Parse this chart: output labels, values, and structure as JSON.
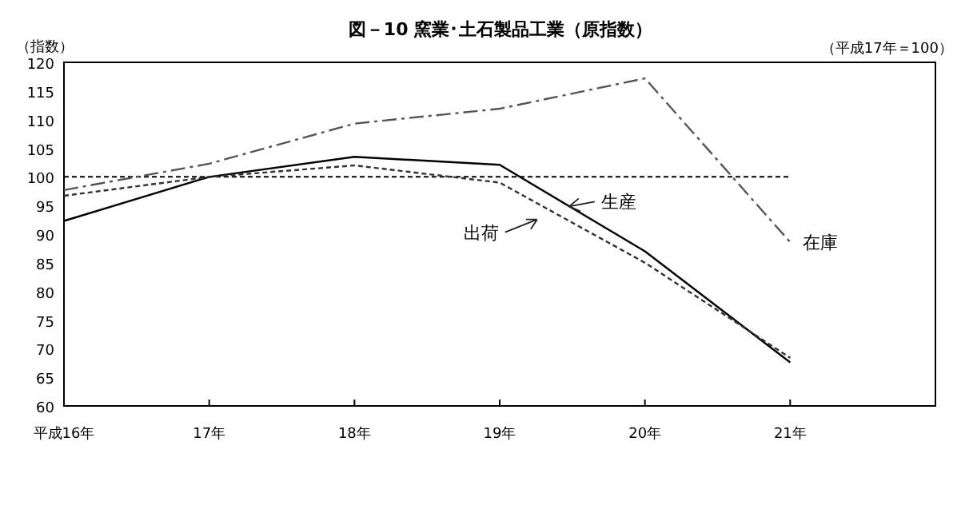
{
  "chart_data": {
    "type": "line",
    "title": "図－10 窯業･土石製品工業（原指数）",
    "ylabel": "（指数）",
    "annotations": [
      "（平成17年＝100）"
    ],
    "categories": [
      "平成16年",
      "17年",
      "18年",
      "19年",
      "20年",
      "21年",
      null
    ],
    "ylim": [
      60,
      120
    ],
    "yticks": [
      60,
      65,
      70,
      75,
      80,
      85,
      90,
      95,
      100,
      105,
      110,
      115,
      120
    ],
    "grid": false,
    "ref_lines": [
      {
        "axis": "y",
        "value": 100,
        "color": "#000000",
        "line_style": "dotted"
      }
    ],
    "series": [
      {
        "name": "生産",
        "color": "#000000",
        "line_style": "solid",
        "values": [
          92.3,
          100,
          103.5,
          102.1,
          87,
          67.6,
          null
        ]
      },
      {
        "name": "出荷",
        "color": "#333333",
        "line_style": "dotted",
        "values": [
          96.7,
          100,
          102,
          99,
          85,
          68.4,
          null
        ]
      },
      {
        "name": "在庫",
        "color": "#555555",
        "line_style": "dashed",
        "values": [
          97.7,
          102.3,
          109.3,
          111.9,
          117.2,
          88.6,
          null
        ]
      }
    ]
  }
}
